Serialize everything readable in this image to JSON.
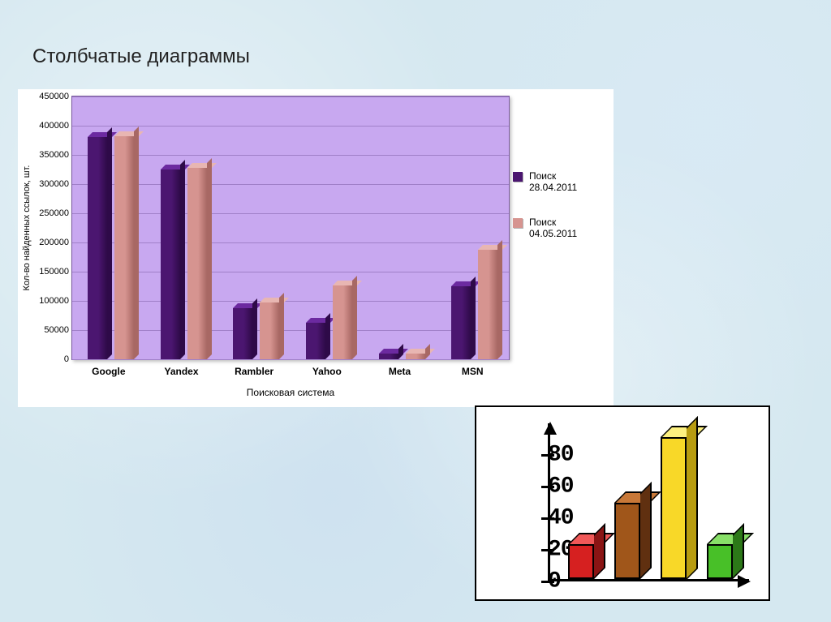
{
  "page_title": "Столбчатые диаграммы",
  "chart1": {
    "type": "grouped-bar-3d",
    "ylabel": "Кол-во найденных ссылок, шт.",
    "xlabel": "Поисковая система",
    "background_color": "#c8a8f0",
    "grid_color": "#a080c8",
    "ylim": [
      0,
      450000
    ],
    "ytick_step": 50000,
    "yticks": [
      0,
      50000,
      100000,
      150000,
      200000,
      250000,
      300000,
      350000,
      400000,
      450000
    ],
    "legend": [
      {
        "label": "Поиск 28.04.2011",
        "front": "#4b1670",
        "side": "#2e0a48",
        "cap": "#6c2aa0"
      },
      {
        "label": "Поиск 04.05.2011",
        "front": "#d69490",
        "side": "#a86864",
        "cap": "#e8b6b2"
      }
    ],
    "categories": [
      "Google",
      "Yandex",
      "Rambler",
      "Yahoo",
      "Meta",
      "MSN"
    ],
    "series": [
      [
        380000,
        325000,
        87000,
        62000,
        10000,
        125000
      ],
      [
        382000,
        328000,
        97000,
        127000,
        10000,
        188000
      ]
    ],
    "cat_label_fontsize": 12,
    "cat_label_fontweight": "bold",
    "tick_fontsize": 11
  },
  "chart2": {
    "type": "bar-3d",
    "ylim": [
      0,
      100
    ],
    "ytick_step": 20,
    "yticks": [
      0,
      20,
      40,
      60,
      80
    ],
    "bars": [
      {
        "value": 22,
        "front": "#d62020",
        "side": "#8a1414",
        "cap": "#f05858"
      },
      {
        "value": 48,
        "front": "#a0561a",
        "side": "#603010",
        "cap": "#c87838"
      },
      {
        "value": 90,
        "front": "#f8d828",
        "side": "#b89c10",
        "cap": "#fcf080"
      },
      {
        "value": 22,
        "front": "#48c028",
        "side": "#2c7818",
        "cap": "#88e068"
      }
    ],
    "tick_font": "Courier New",
    "tick_fontsize": 28,
    "axis_color": "#000000",
    "background_color": "#ffffff"
  }
}
